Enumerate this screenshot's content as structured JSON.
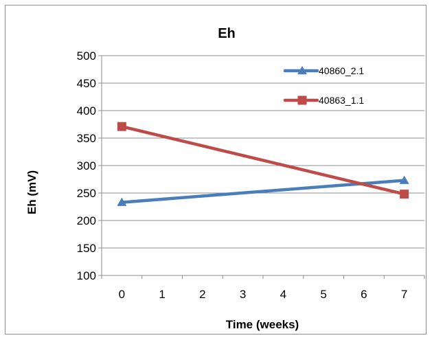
{
  "chart_data": {
    "type": "line",
    "title": "Eh",
    "xlabel": "Time (weeks)",
    "ylabel": "Eh (mV)",
    "xlim": [
      -0.5,
      7.5
    ],
    "ylim": [
      100,
      500
    ],
    "x_ticks": [
      "0",
      "1",
      "2",
      "3",
      "4",
      "5",
      "6",
      "7"
    ],
    "y_ticks": [
      "100",
      "150",
      "200",
      "250",
      "300",
      "350",
      "400",
      "450",
      "500"
    ],
    "grid": "horizontal",
    "legend_position": "top-right",
    "series": [
      {
        "name": "40860_2.1",
        "color": "#4a7ebb",
        "marker": "triangle",
        "x": [
          0,
          7
        ],
        "y": [
          233,
          273
        ]
      },
      {
        "name": "40863_1.1",
        "color": "#be4b48",
        "marker": "square",
        "x": [
          0,
          7
        ],
        "y": [
          371,
          248
        ]
      }
    ]
  }
}
